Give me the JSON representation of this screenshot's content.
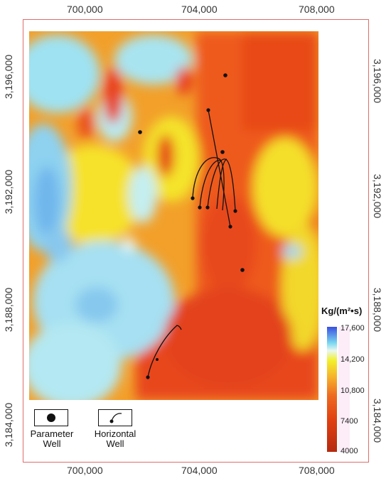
{
  "x_axis": {
    "top": [
      "700,000",
      "704,000",
      "708,000"
    ],
    "bottom": [
      "700,000",
      "704,000",
      "708,000"
    ]
  },
  "y_axis": {
    "left": [
      "3,196,000",
      "3,192,000",
      "3,188,000",
      "3,184,000"
    ],
    "right": [
      "3,196,000",
      "3,192,000",
      "3,188,000",
      "3,184,000"
    ]
  },
  "colorbar": {
    "unit": "Kg/(m²•s)",
    "values": [
      "17,600",
      "14,200",
      "10,800",
      "7400",
      "4000"
    ],
    "colors": [
      "#3a4fe0",
      "#7ad8f0",
      "#f2f02a",
      "#ee6a20",
      "#b52a10"
    ]
  },
  "legend": {
    "parameter_well": "Parameter Well",
    "horizontal_well": "Horizontal Well"
  }
}
